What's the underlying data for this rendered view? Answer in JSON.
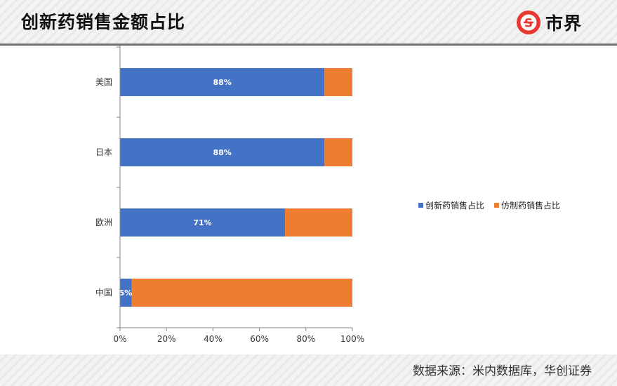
{
  "header": {
    "title": "创新药销售金额占比",
    "logo_text": "市界",
    "logo_icon": "s-badge-icon",
    "logo_color": "#e8382f"
  },
  "chart_data": {
    "type": "bar",
    "orientation": "horizontal",
    "stacked": true,
    "categories": [
      "美国",
      "日本",
      "欧洲",
      "中国"
    ],
    "series": [
      {
        "name": "创新药销售占比",
        "color": "#4472c4",
        "values": [
          88,
          88,
          71,
          5
        ]
      },
      {
        "name": "仿制药销售占比",
        "color": "#ed7d31",
        "values": [
          12,
          12,
          29,
          95
        ]
      }
    ],
    "data_labels": [
      "88%",
      "88%",
      "71%",
      "5%"
    ],
    "xticks": [
      "0%",
      "20%",
      "40%",
      "60%",
      "80%",
      "100%"
    ],
    "xlim": [
      0,
      100
    ],
    "grid": false,
    "legend_position": "right"
  },
  "footer": {
    "source": "数据来源：米内数据库，华创证券"
  }
}
